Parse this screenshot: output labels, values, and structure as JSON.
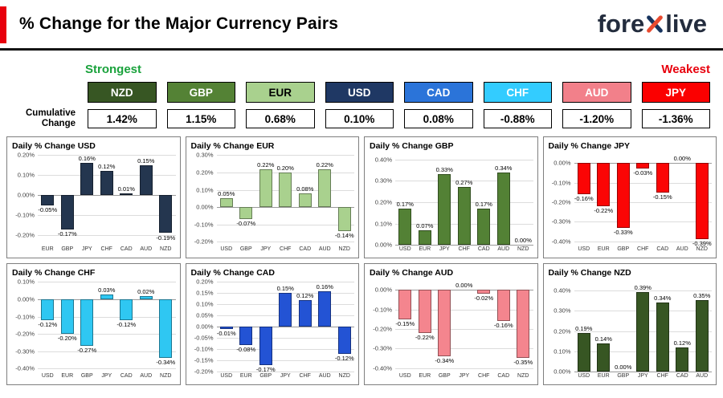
{
  "header": {
    "title": "% Change for the Major Currency Pairs",
    "logo_fore": "fore",
    "logo_live": "live"
  },
  "labels": {
    "strongest": "Strongest",
    "weakest": "Weakest",
    "cumulative_line1": "Cumulative",
    "cumulative_line2": "Change"
  },
  "colors": {
    "accent_red": "#e8000d",
    "strongest_green": "#1aa23c"
  },
  "ranking": [
    {
      "code": "NZD",
      "value": "1.42%",
      "color": "#375623",
      "text_color": "#ffffff"
    },
    {
      "code": "GBP",
      "value": "1.15%",
      "color": "#548235",
      "text_color": "#ffffff"
    },
    {
      "code": "EUR",
      "value": "0.68%",
      "color": "#a9d18e",
      "text_color": "#000000"
    },
    {
      "code": "USD",
      "value": "0.10%",
      "color": "#1f3864",
      "text_color": "#ffffff"
    },
    {
      "code": "CAD",
      "value": "0.08%",
      "color": "#2b74d9",
      "text_color": "#ffffff"
    },
    {
      "code": "CHF",
      "value": "-0.88%",
      "color": "#33ccff",
      "text_color": "#ffffff"
    },
    {
      "code": "AUD",
      "value": "-1.20%",
      "color": "#f2808a",
      "text_color": "#ffffff"
    },
    {
      "code": "JPY",
      "value": "-1.36%",
      "color": "#fb0000",
      "text_color": "#ffffff"
    }
  ],
  "chart_data": [
    {
      "type": "bar",
      "title": "Daily % Change USD",
      "color": "#24364f",
      "categories": [
        "EUR",
        "GBP",
        "JPY",
        "CHF",
        "CAD",
        "AUD",
        "NZD"
      ],
      "values": [
        -0.05,
        -0.17,
        0.16,
        0.12,
        0.01,
        0.15,
        -0.19
      ],
      "labels": [
        "-0.05%",
        "-0.17%",
        "0.16%",
        "0.12%",
        "0.01%",
        "0.15%",
        "-0.19%"
      ],
      "ylim": [
        -0.25,
        0.2
      ],
      "yticks": [
        0.2,
        0.1,
        0,
        -0.1,
        -0.2
      ],
      "ytick_labels": [
        "0.20%",
        "0.10%",
        "0.00%",
        "-0.10%",
        "-0.20%"
      ]
    },
    {
      "type": "bar",
      "title": "Daily % Change EUR",
      "color": "#a9d18e",
      "categories": [
        "USD",
        "GBP",
        "JPY",
        "CHF",
        "CAD",
        "AUD",
        "NZD"
      ],
      "values": [
        0.05,
        -0.07,
        0.22,
        0.2,
        0.08,
        0.22,
        -0.14
      ],
      "labels": [
        "0.05%",
        "-0.07%",
        "0.22%",
        "0.20%",
        "0.08%",
        "0.22%",
        "-0.14%"
      ],
      "ylim": [
        -0.22,
        0.3
      ],
      "yticks": [
        0.3,
        0.2,
        0.1,
        0,
        -0.1,
        -0.2
      ],
      "ytick_labels": [
        "0.30%",
        "0.20%",
        "0.10%",
        "0.00%",
        "-0.10%",
        "-0.20%"
      ]
    },
    {
      "type": "bar",
      "title": "Daily % Change GBP",
      "color": "#538135",
      "categories": [
        "USD",
        "EUR",
        "JPY",
        "CHF",
        "CAD",
        "AUD",
        "NZD"
      ],
      "values": [
        0.17,
        0.07,
        0.33,
        0.27,
        0.17,
        0.34,
        0.0
      ],
      "labels": [
        "0.17%",
        "0.07%",
        "0.33%",
        "0.27%",
        "0.17%",
        "0.34%",
        "0.00%"
      ],
      "ylim": [
        0,
        0.42
      ],
      "yticks": [
        0.4,
        0.3,
        0.2,
        0.1,
        0
      ],
      "ytick_labels": [
        "0.40%",
        "0.30%",
        "0.20%",
        "0.10%",
        "0.00%"
      ]
    },
    {
      "type": "bar",
      "title": "Daily % Change JPY",
      "color": "#fb0505",
      "categories": [
        "USD",
        "EUR",
        "GBP",
        "CHF",
        "CAD",
        "AUD",
        "NZD"
      ],
      "values": [
        -0.16,
        -0.22,
        -0.33,
        -0.03,
        -0.15,
        0.0,
        -0.39
      ],
      "labels": [
        "-0.16%",
        "-0.22%",
        "-0.33%",
        "-0.03%",
        "-0.15%",
        "0.00%",
        "-0.39%"
      ],
      "ylim": [
        -0.42,
        0.04
      ],
      "yticks": [
        0,
        -0.1,
        -0.2,
        -0.3,
        -0.4
      ],
      "ytick_labels": [
        "0.00%",
        "-0.10%",
        "-0.20%",
        "-0.30%",
        "-0.40%"
      ]
    },
    {
      "type": "bar",
      "title": "Daily % Change CHF",
      "color": "#2fc7f2",
      "categories": [
        "USD",
        "EUR",
        "GBP",
        "JPY",
        "CAD",
        "AUD",
        "NZD"
      ],
      "values": [
        -0.12,
        -0.2,
        -0.27,
        0.03,
        -0.12,
        0.02,
        -0.34
      ],
      "labels": [
        "-0.12%",
        "-0.20%",
        "-0.27%",
        "0.03%",
        "-0.12%",
        "0.02%",
        "-0.34%"
      ],
      "ylim": [
        -0.42,
        0.1
      ],
      "yticks": [
        0.1,
        0,
        -0.1,
        -0.2,
        -0.3,
        -0.4
      ],
      "ytick_labels": [
        "0.10%",
        "0.00%",
        "-0.10%",
        "-0.20%",
        "-0.30%",
        "-0.40%"
      ]
    },
    {
      "type": "bar",
      "title": "Daily % Change CAD",
      "color": "#2353d4",
      "categories": [
        "USD",
        "EUR",
        "GBP",
        "JPY",
        "CHF",
        "AUD",
        "NZD"
      ],
      "values": [
        -0.01,
        -0.08,
        -0.17,
        0.15,
        0.12,
        0.16,
        -0.12
      ],
      "labels": [
        "-0.01%",
        "-0.08%",
        "-0.17%",
        "0.15%",
        "0.12%",
        "0.16%",
        "-0.12%"
      ],
      "ylim": [
        -0.2,
        0.2
      ],
      "yticks": [
        0.2,
        0.15,
        0.1,
        0.05,
        0,
        -0.05,
        -0.1,
        -0.15,
        -0.2
      ],
      "ytick_labels": [
        "0.20%",
        "0.15%",
        "0.10%",
        "0.05%",
        "0.00%",
        "-0.05%",
        "-0.10%",
        "-0.15%",
        "-0.20%"
      ]
    },
    {
      "type": "bar",
      "title": "Daily % Change AUD",
      "color": "#f4858e",
      "categories": [
        "USD",
        "EUR",
        "GBP",
        "JPY",
        "CHF",
        "CAD",
        "NZD"
      ],
      "values": [
        -0.15,
        -0.22,
        -0.34,
        0.0,
        -0.02,
        -0.16,
        -0.35
      ],
      "labels": [
        "-0.15%",
        "-0.22%",
        "-0.34%",
        "0.00%",
        "-0.02%",
        "-0.16%",
        "-0.35%"
      ],
      "ylim": [
        -0.42,
        0.04
      ],
      "yticks": [
        0,
        -0.1,
        -0.2,
        -0.3,
        -0.4
      ],
      "ytick_labels": [
        "0.00%",
        "-0.10%",
        "-0.20%",
        "-0.30%",
        "-0.40%"
      ]
    },
    {
      "type": "bar",
      "title": "Daily % Change NZD",
      "color": "#375623",
      "categories": [
        "USD",
        "EUR",
        "GBP",
        "JPY",
        "CHF",
        "CAD",
        "AUD"
      ],
      "values": [
        0.19,
        0.14,
        0.0,
        0.39,
        0.34,
        0.12,
        0.35
      ],
      "labels": [
        "0.19%",
        "0.14%",
        "0.00%",
        "0.39%",
        "0.34%",
        "0.12%",
        "0.35%"
      ],
      "ylim": [
        0,
        0.44
      ],
      "yticks": [
        0.4,
        0.3,
        0.2,
        0.1,
        0
      ],
      "ytick_labels": [
        "0.40%",
        "0.30%",
        "0.20%",
        "0.10%",
        "0.00%"
      ]
    }
  ]
}
